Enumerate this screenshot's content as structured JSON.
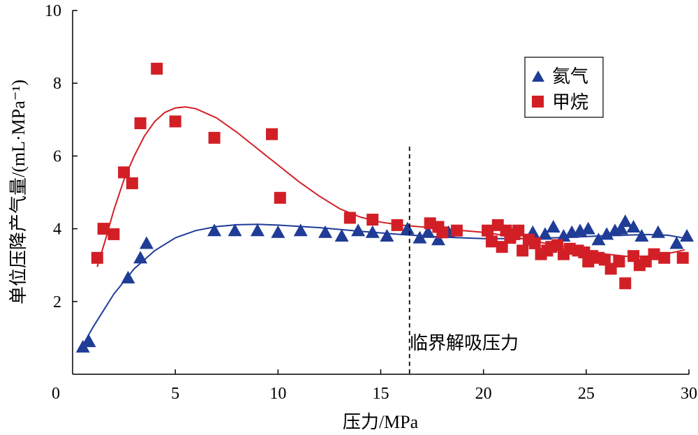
{
  "chart_data": {
    "type": "scatter",
    "xlabel": "压力/MPa",
    "ylabel": "单位压降产气量/(mL·MPa⁻¹)",
    "xlim": [
      0,
      30
    ],
    "ylim": [
      0,
      10
    ],
    "xticks": [
      0,
      5,
      10,
      15,
      20,
      25,
      30
    ],
    "yticks": [
      2,
      4,
      6,
      8,
      10
    ],
    "grid": false,
    "legend_position": "top-right",
    "series": [
      {
        "name": "氦气",
        "marker": "triangle",
        "color": "#1f3c96",
        "points": [
          [
            0.5,
            0.75
          ],
          [
            0.8,
            0.9
          ],
          [
            2.7,
            2.65
          ],
          [
            3.3,
            3.2
          ],
          [
            3.6,
            3.6
          ],
          [
            6.9,
            3.95
          ],
          [
            7.9,
            3.95
          ],
          [
            9.0,
            3.95
          ],
          [
            10.0,
            3.9
          ],
          [
            11.1,
            3.95
          ],
          [
            12.3,
            3.9
          ],
          [
            13.1,
            3.8
          ],
          [
            13.9,
            3.95
          ],
          [
            14.6,
            3.9
          ],
          [
            15.3,
            3.8
          ],
          [
            16.3,
            4.0
          ],
          [
            16.9,
            3.75
          ],
          [
            17.3,
            3.9
          ],
          [
            17.8,
            3.7
          ],
          [
            18.3,
            3.9
          ],
          [
            22.4,
            3.9
          ],
          [
            23.0,
            3.85
          ],
          [
            23.4,
            4.05
          ],
          [
            23.9,
            3.8
          ],
          [
            24.3,
            3.9
          ],
          [
            24.7,
            3.95
          ],
          [
            25.1,
            4.0
          ],
          [
            25.6,
            3.7
          ],
          [
            26.0,
            3.85
          ],
          [
            26.4,
            3.95
          ],
          [
            26.7,
            4.0
          ],
          [
            26.9,
            4.2
          ],
          [
            27.3,
            4.05
          ],
          [
            27.7,
            3.8
          ],
          [
            28.5,
            3.9
          ],
          [
            29.4,
            3.6
          ],
          [
            29.9,
            3.8
          ]
        ],
        "fit": [
          [
            0.3,
            0.6
          ],
          [
            1.0,
            1.3
          ],
          [
            2.0,
            2.2
          ],
          [
            3.0,
            2.9
          ],
          [
            4.0,
            3.4
          ],
          [
            5.0,
            3.75
          ],
          [
            6.0,
            3.95
          ],
          [
            7.0,
            4.06
          ],
          [
            8.0,
            4.11
          ],
          [
            9.0,
            4.12
          ],
          [
            10.0,
            4.1
          ],
          [
            12.0,
            4.03
          ],
          [
            14.0,
            3.93
          ],
          [
            16.0,
            3.84
          ],
          [
            18.0,
            3.77
          ],
          [
            20.0,
            3.73
          ],
          [
            22.0,
            3.73
          ],
          [
            24.0,
            3.76
          ],
          [
            26.0,
            3.81
          ],
          [
            28.0,
            3.84
          ],
          [
            29.0,
            3.82
          ],
          [
            30.0,
            3.72
          ]
        ]
      },
      {
        "name": "甲烷",
        "marker": "square",
        "color": "#d21f26",
        "points": [
          [
            1.2,
            3.2
          ],
          [
            1.5,
            4.0
          ],
          [
            2.0,
            3.85
          ],
          [
            2.5,
            5.55
          ],
          [
            2.9,
            5.25
          ],
          [
            3.3,
            6.9
          ],
          [
            4.1,
            8.4
          ],
          [
            5.0,
            6.95
          ],
          [
            6.9,
            6.5
          ],
          [
            9.7,
            6.6
          ],
          [
            10.1,
            4.85
          ],
          [
            13.5,
            4.3
          ],
          [
            14.6,
            4.25
          ],
          [
            15.8,
            4.1
          ],
          [
            17.4,
            4.15
          ],
          [
            17.8,
            4.05
          ],
          [
            18.0,
            3.9
          ],
          [
            18.7,
            3.95
          ],
          [
            20.2,
            3.95
          ],
          [
            20.4,
            3.65
          ],
          [
            20.7,
            4.1
          ],
          [
            20.9,
            3.5
          ],
          [
            21.1,
            3.95
          ],
          [
            21.3,
            3.75
          ],
          [
            21.5,
            3.85
          ],
          [
            21.7,
            3.95
          ],
          [
            21.9,
            3.4
          ],
          [
            22.2,
            3.7
          ],
          [
            22.5,
            3.6
          ],
          [
            22.8,
            3.3
          ],
          [
            23.1,
            3.4
          ],
          [
            23.3,
            3.5
          ],
          [
            23.6,
            3.55
          ],
          [
            23.9,
            3.3
          ],
          [
            24.2,
            3.45
          ],
          [
            24.6,
            3.4
          ],
          [
            24.9,
            3.35
          ],
          [
            25.1,
            3.1
          ],
          [
            25.3,
            3.25
          ],
          [
            25.6,
            3.2
          ],
          [
            25.9,
            3.15
          ],
          [
            26.2,
            2.9
          ],
          [
            26.6,
            3.1
          ],
          [
            26.9,
            2.5
          ],
          [
            27.3,
            3.25
          ],
          [
            27.6,
            3.0
          ],
          [
            27.9,
            3.1
          ],
          [
            28.3,
            3.3
          ],
          [
            28.8,
            3.2
          ],
          [
            29.7,
            3.2
          ]
        ],
        "fit": [
          [
            1.2,
            2.95
          ],
          [
            1.6,
            3.7
          ],
          [
            2.0,
            4.5
          ],
          [
            2.5,
            5.35
          ],
          [
            3.0,
            6.0
          ],
          [
            3.5,
            6.55
          ],
          [
            4.0,
            6.95
          ],
          [
            4.5,
            7.2
          ],
          [
            5.0,
            7.32
          ],
          [
            5.5,
            7.35
          ],
          [
            6.0,
            7.3
          ],
          [
            7.0,
            7.05
          ],
          [
            8.0,
            6.65
          ],
          [
            9.0,
            6.2
          ],
          [
            10.0,
            5.75
          ],
          [
            11.0,
            5.3
          ],
          [
            12.0,
            4.9
          ],
          [
            13.0,
            4.55
          ],
          [
            14.0,
            4.32
          ],
          [
            15.0,
            4.18
          ],
          [
            16.0,
            4.1
          ],
          [
            17.0,
            4.05
          ],
          [
            18.0,
            4.0
          ],
          [
            19.0,
            3.95
          ],
          [
            20.0,
            3.9
          ],
          [
            21.0,
            3.82
          ],
          [
            22.0,
            3.72
          ],
          [
            23.0,
            3.6
          ],
          [
            24.0,
            3.5
          ],
          [
            25.0,
            3.4
          ],
          [
            26.0,
            3.3
          ],
          [
            27.0,
            3.24
          ],
          [
            28.0,
            3.25
          ],
          [
            29.0,
            3.32
          ],
          [
            29.8,
            3.42
          ]
        ]
      }
    ],
    "vline": {
      "x": 16.4,
      "label": "临界解吸压力"
    }
  }
}
